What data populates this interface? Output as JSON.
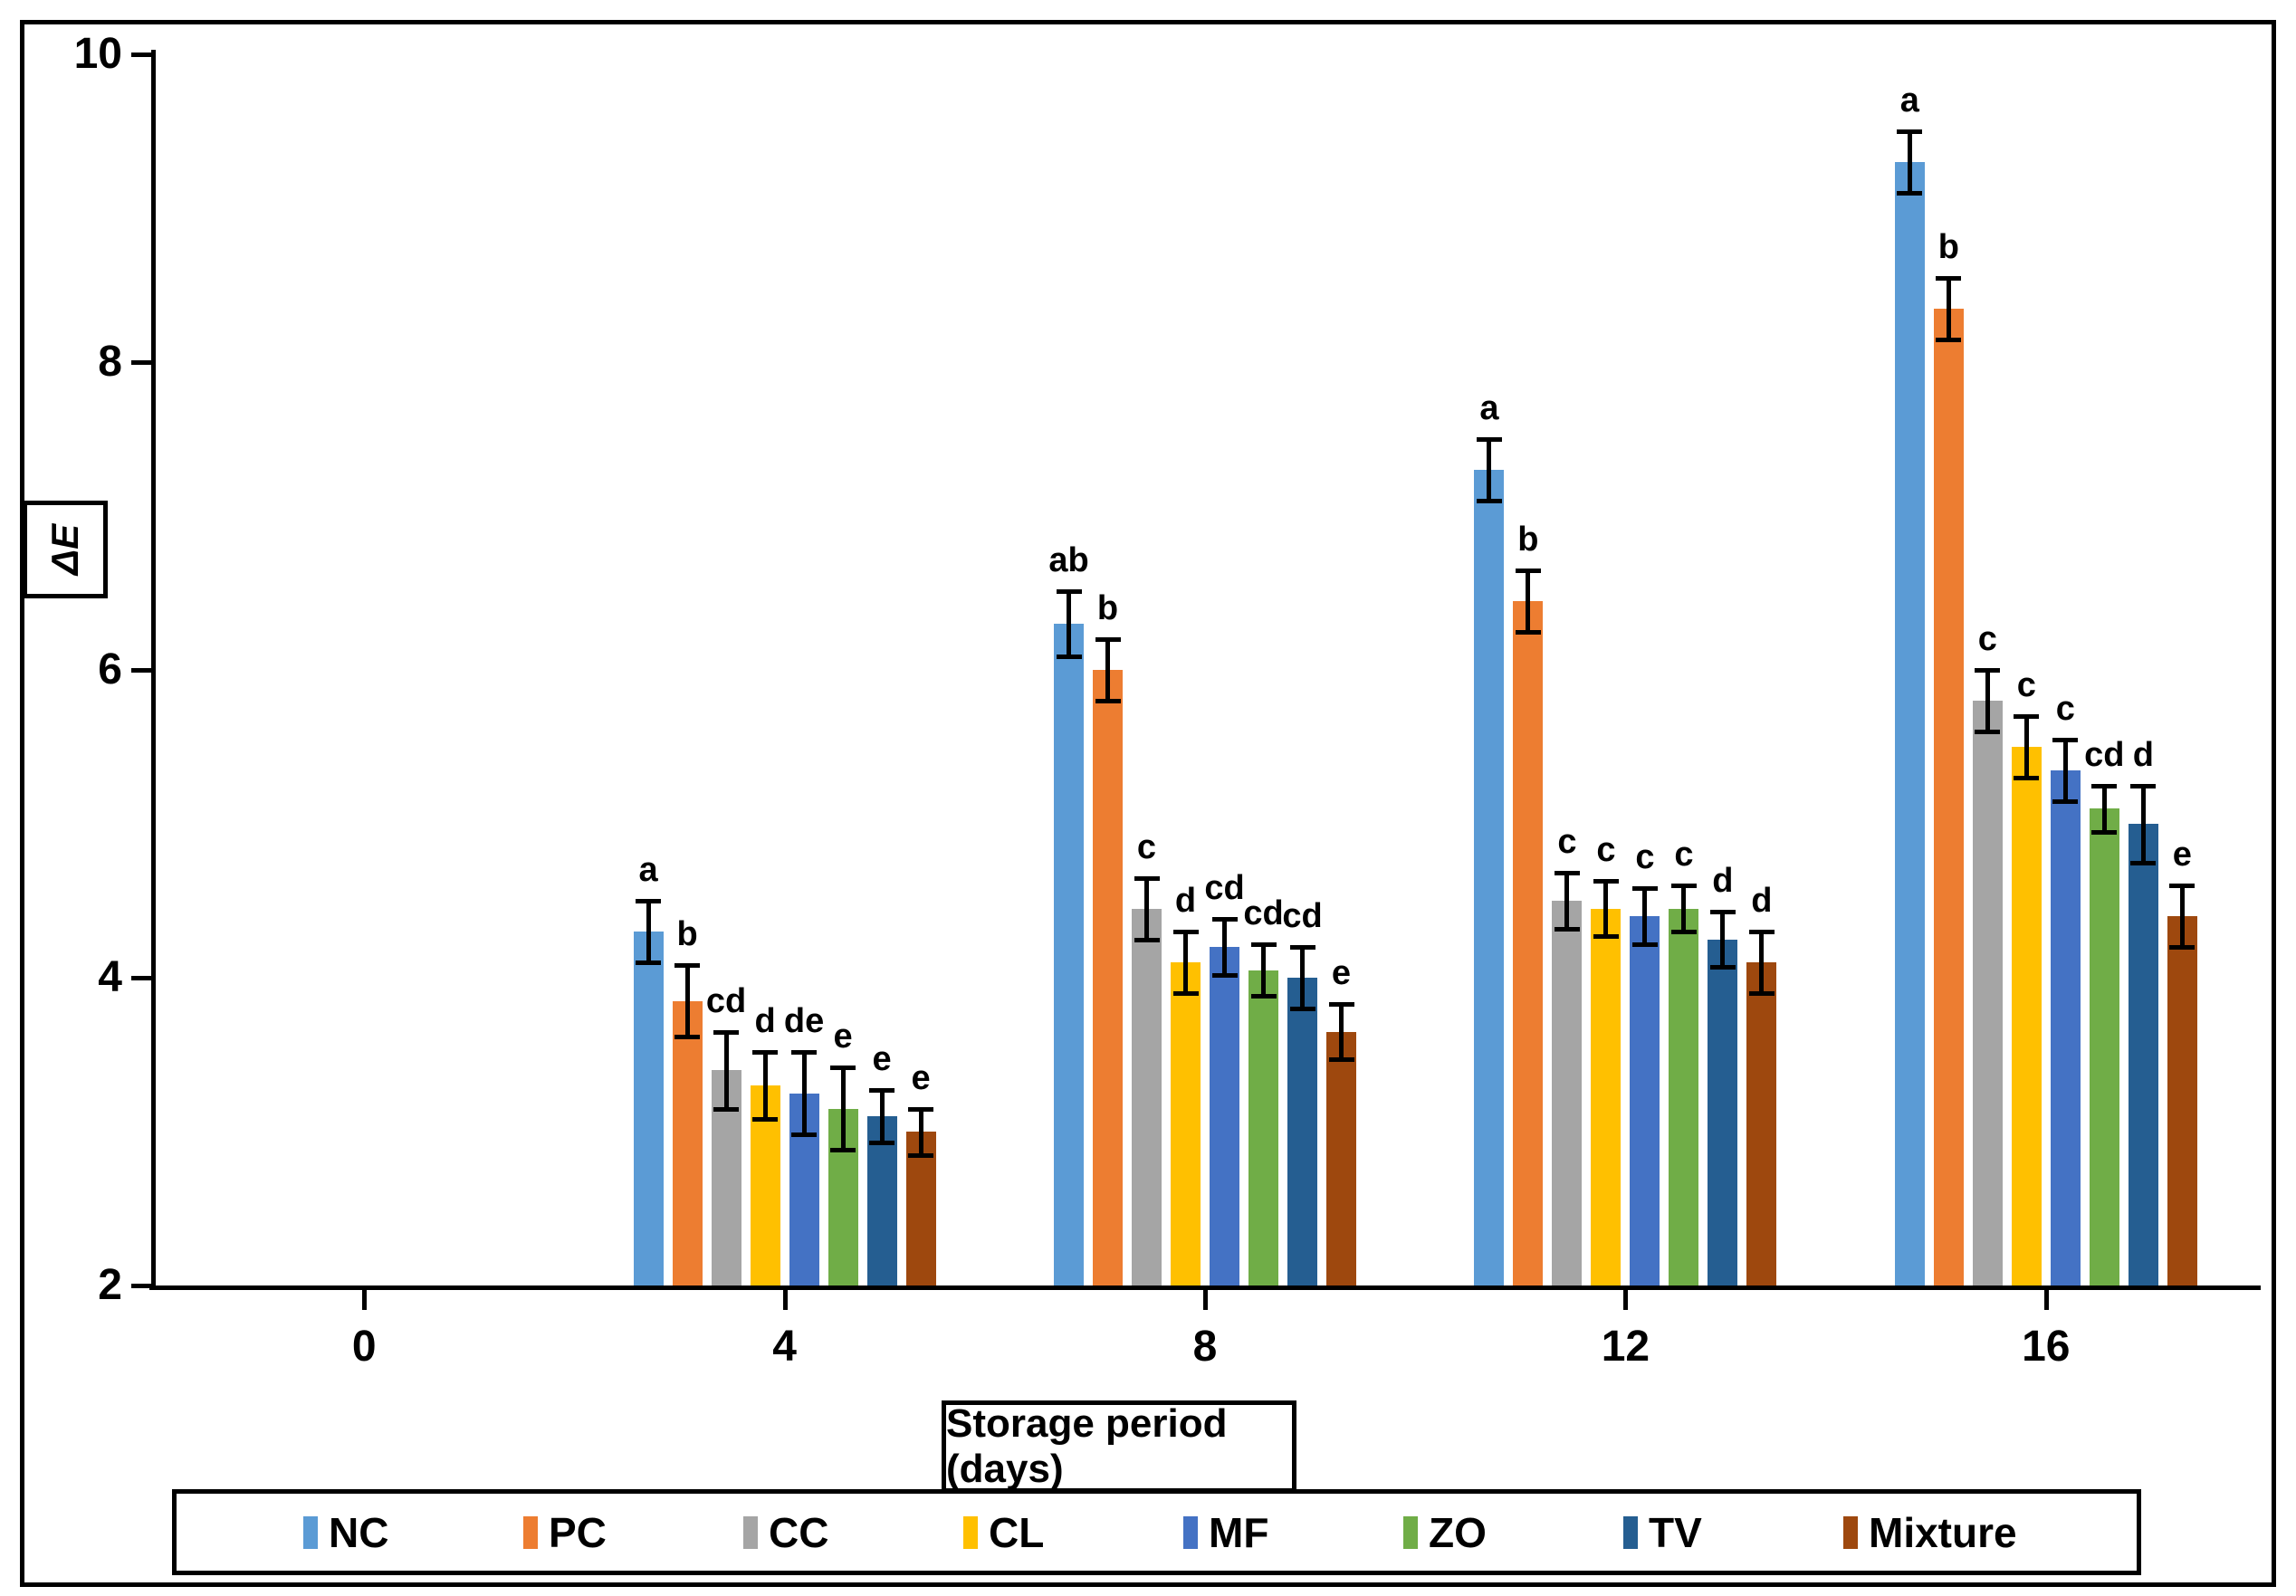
{
  "chart_data": {
    "type": "bar",
    "title": "",
    "xlabel": "Storage period (days)",
    "ylabel": "ΔE",
    "categories": [
      "0",
      "4",
      "8",
      "12",
      "16"
    ],
    "ylim": [
      2,
      10
    ],
    "yticks": [
      2,
      4,
      6,
      8,
      10
    ],
    "grid": false,
    "legend_position": "bottom",
    "error_bars": true,
    "series": [
      {
        "name": "NC",
        "color": "#5B9BD5",
        "values": [
          null,
          4.3,
          6.3,
          7.3,
          9.3
        ],
        "errors": [
          null,
          0.2,
          0.21,
          0.2,
          0.2
        ],
        "letters": [
          null,
          "a",
          "ab",
          "a",
          "a"
        ]
      },
      {
        "name": "PC",
        "color": "#ED7D31",
        "values": [
          null,
          3.85,
          6.0,
          6.45,
          8.35
        ],
        "errors": [
          null,
          0.23,
          0.2,
          0.2,
          0.2
        ],
        "letters": [
          null,
          "b",
          "b",
          "b",
          "b"
        ]
      },
      {
        "name": "CC",
        "color": "#A5A5A5",
        "values": [
          null,
          3.4,
          4.45,
          4.5,
          5.8
        ],
        "errors": [
          null,
          0.25,
          0.2,
          0.18,
          0.2
        ],
        "letters": [
          null,
          "cd",
          "c",
          "c",
          "c"
        ]
      },
      {
        "name": "CL",
        "color": "#FFC000",
        "values": [
          null,
          3.3,
          4.1,
          4.45,
          5.5
        ],
        "errors": [
          null,
          0.22,
          0.2,
          0.18,
          0.2
        ],
        "letters": [
          null,
          "d",
          "d",
          "c",
          "c"
        ]
      },
      {
        "name": "MF",
        "color": "#4472C4",
        "values": [
          null,
          3.25,
          4.2,
          4.4,
          5.35
        ],
        "errors": [
          null,
          0.27,
          0.18,
          0.18,
          0.2
        ],
        "letters": [
          null,
          "de",
          "cd",
          "c",
          "c"
        ]
      },
      {
        "name": "ZO",
        "color": "#70AD47",
        "values": [
          null,
          3.15,
          4.05,
          4.45,
          5.1
        ],
        "errors": [
          null,
          0.27,
          0.17,
          0.15,
          0.15
        ],
        "letters": [
          null,
          "e",
          "cd",
          "c",
          "cd"
        ]
      },
      {
        "name": "TV",
        "color": "#255E91",
        "values": [
          null,
          3.1,
          4.0,
          4.25,
          5.0
        ],
        "errors": [
          null,
          0.17,
          0.2,
          0.18,
          0.25
        ],
        "letters": [
          null,
          "e",
          "cd",
          "d",
          "d"
        ]
      },
      {
        "name": "Mixture",
        "color": "#9E480E",
        "values": [
          null,
          3.0,
          3.65,
          4.1,
          4.4
        ],
        "errors": [
          null,
          0.15,
          0.18,
          0.2,
          0.2
        ],
        "letters": [
          null,
          "e",
          "e",
          "d",
          "e"
        ]
      }
    ]
  }
}
